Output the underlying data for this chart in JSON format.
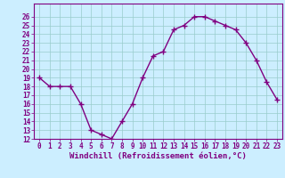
{
  "x": [
    0,
    1,
    2,
    3,
    4,
    5,
    6,
    7,
    8,
    9,
    10,
    11,
    12,
    13,
    14,
    15,
    16,
    17,
    18,
    19,
    20,
    21,
    22,
    23
  ],
  "y": [
    19,
    18,
    18,
    18,
    16,
    13,
    12.5,
    12,
    14,
    16,
    19,
    21.5,
    22,
    24.5,
    25,
    26,
    26,
    25.5,
    25,
    24.5,
    23,
    21,
    18.5,
    16.5
  ],
  "line_color": "#800080",
  "marker": "+",
  "marker_color": "#800080",
  "bg_color": "#cceeff",
  "grid_color": "#99cccc",
  "xlabel": "Windchill (Refroidissement éolien,°C)",
  "ylim": [
    12,
    27
  ],
  "xlim": [
    -0.5,
    23.5
  ],
  "yticks": [
    12,
    13,
    14,
    15,
    16,
    17,
    18,
    19,
    20,
    21,
    22,
    23,
    24,
    25,
    26
  ],
  "xticks": [
    0,
    1,
    2,
    3,
    4,
    5,
    6,
    7,
    8,
    9,
    10,
    11,
    12,
    13,
    14,
    15,
    16,
    17,
    18,
    19,
    20,
    21,
    22,
    23
  ],
  "tick_color": "#800080",
  "tick_fontsize": 5.5,
  "xlabel_fontsize": 6.5,
  "line_width": 1.0,
  "marker_size": 4
}
